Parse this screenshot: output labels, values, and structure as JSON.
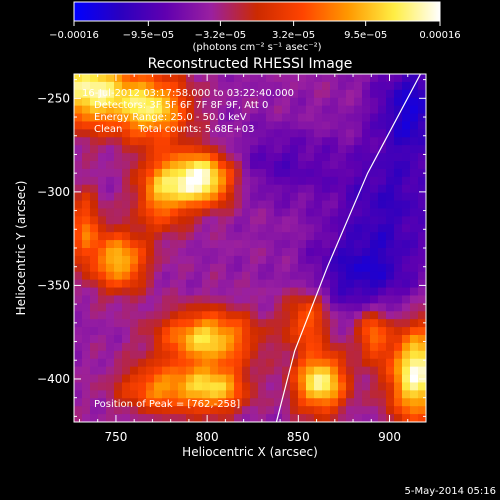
{
  "chart_data": {
    "type": "heatmap",
    "title": "Reconstructed RHESSI Image",
    "xlabel": "Heliocentric X (arcsec)",
    "ylabel": "Heliocentric Y (arcsec)",
    "xlim": [
      727,
      920
    ],
    "ylim": [
      -423,
      -237
    ],
    "xticks": [
      750,
      800,
      850,
      900
    ],
    "yticks": [
      -250,
      -300,
      -350,
      -400
    ],
    "xtick_labels": [
      "750",
      "800",
      "850",
      "900"
    ],
    "ytick_labels": [
      "−250",
      "−300",
      "−350",
      "−400"
    ],
    "colorbar": {
      "range": [
        -0.00016,
        0.00016
      ],
      "tick_values": [
        -0.00016,
        -9.5e-05,
        -3.2e-05,
        3.2e-05,
        9.5e-05,
        0.00016
      ],
      "tick_labels": [
        "−0.00016",
        "−9.5e−05",
        "−3.2e−05",
        "3.2e−05",
        "9.5e−05",
        "0.00016"
      ],
      "unit_label": "(photons cm⁻² s⁻¹ asec⁻²)",
      "stops": [
        "#0000ff",
        "#2a00c0",
        "#6000b0",
        "#9a20a0",
        "#cc2a00",
        "#ff4400",
        "#ff9900",
        "#ffee44",
        "#ffffff"
      ]
    },
    "annotations": [
      "16-Jul-2012 03:17:58.000 to 03:22:40.000",
      "Detectors: 3F 5F 6F 7F 8F 9F, Att 0",
      "Energy Range: 25.0 - 50.0 keV",
      "Clean     Total counts: 5.68E+03"
    ],
    "peak_label": "Position of Peak = [762,-258]",
    "limb_points": [
      [
        917,
        -237
      ],
      [
        888,
        -290
      ],
      [
        866,
        -340
      ],
      [
        848,
        -385
      ],
      [
        838,
        -423
      ]
    ],
    "sources": [
      {
        "x": 735,
        "y": -245,
        "sx": 16,
        "sy": 14,
        "amp": 1.5
      },
      {
        "x": 770,
        "y": -255,
        "sx": 14,
        "sy": 12,
        "amp": 1.3
      },
      {
        "x": 797,
        "y": -293,
        "sx": 12,
        "sy": 10,
        "amp": 1.7
      },
      {
        "x": 775,
        "y": -300,
        "sx": 10,
        "sy": 14,
        "amp": 1.0
      },
      {
        "x": 752,
        "y": -337,
        "sx": 10,
        "sy": 11,
        "amp": 1.2
      },
      {
        "x": 733,
        "y": -320,
        "sx": 6,
        "sy": 14,
        "amp": 0.8
      },
      {
        "x": 800,
        "y": -378,
        "sx": 18,
        "sy": 10,
        "amp": 1.3
      },
      {
        "x": 775,
        "y": -405,
        "sx": 16,
        "sy": 9,
        "amp": 0.95
      },
      {
        "x": 805,
        "y": -405,
        "sx": 12,
        "sy": 9,
        "amp": 1.1
      },
      {
        "x": 855,
        "y": -368,
        "sx": 9,
        "sy": 11,
        "amp": 0.8
      },
      {
        "x": 862,
        "y": -402,
        "sx": 10,
        "sy": 11,
        "amp": 1.5
      },
      {
        "x": 890,
        "y": -375,
        "sx": 6,
        "sy": 10,
        "amp": 0.9
      },
      {
        "x": 915,
        "y": -397,
        "sx": 11,
        "sy": 18,
        "amp": 1.6
      },
      {
        "x": 900,
        "y": -305,
        "sx": 22,
        "sy": 22,
        "amp": -0.5
      },
      {
        "x": 885,
        "y": -345,
        "sx": 20,
        "sy": 16,
        "amp": -0.6
      },
      {
        "x": 912,
        "y": -255,
        "sx": 14,
        "sy": 18,
        "amp": -0.7
      },
      {
        "x": 840,
        "y": -285,
        "sx": 22,
        "sy": 14,
        "amp": -0.35
      }
    ]
  },
  "timestamp": "5-May-2014 05:16"
}
